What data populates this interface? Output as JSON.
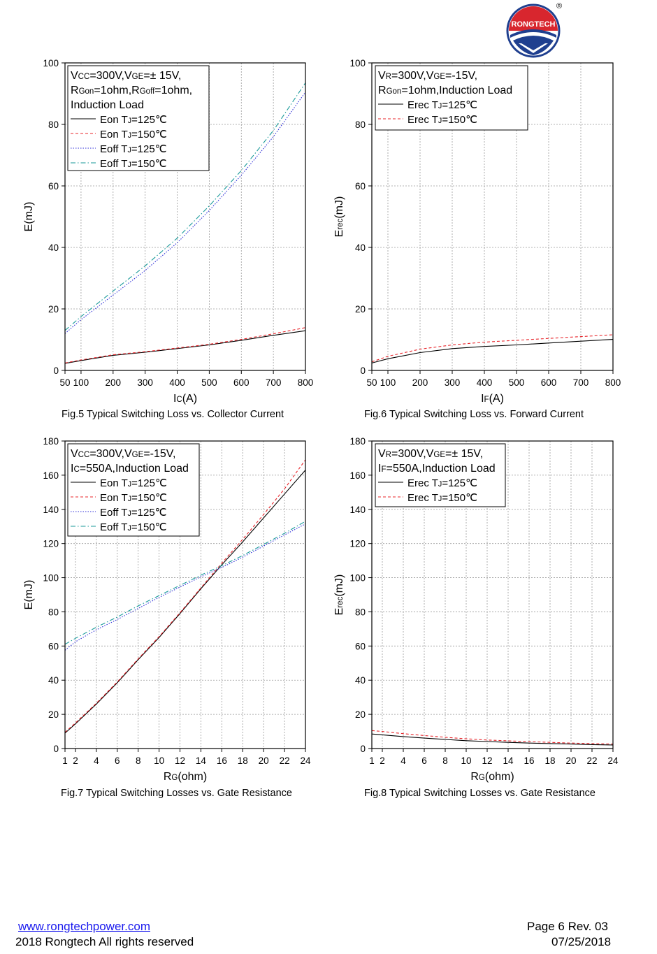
{
  "brand": {
    "logo_text": "RONGTECH",
    "registered": "®",
    "colors": {
      "red": "#d8262e",
      "blue": "#1f3f8f"
    }
  },
  "footer": {
    "website": "www.rongtechpower.com",
    "copyright": "2018 Rongtech All rights reserved",
    "page": "Page 6  Rev. 03",
    "date": "07/25/2018"
  },
  "colors": {
    "s125": "#000000",
    "s150": "#e8242a",
    "soff125": "#3030d8",
    "soff150": "#1a9a9a"
  },
  "chart_data": [
    {
      "id": "fig5",
      "type": "line",
      "caption": "Fig.5 Typical Switching Loss vs. Collector Current",
      "xlabel": [
        "I",
        "C",
        "(A)"
      ],
      "ylabel": [
        "E(mJ)"
      ],
      "xlim": [
        50,
        800
      ],
      "ylim": [
        0,
        100
      ],
      "xticks": [
        50,
        100,
        200,
        300,
        400,
        500,
        600,
        700,
        800
      ],
      "yticks": [
        0,
        20,
        40,
        60,
        80,
        100
      ],
      "grid": true,
      "legend_position": "top-left",
      "legend_conditions": [
        [
          [
            "V",
            false
          ],
          [
            "CC",
            true
          ],
          [
            "=300V,V",
            false
          ],
          [
            "GE",
            true
          ],
          [
            "=± 15V,",
            false
          ]
        ],
        [
          [
            "R",
            false
          ],
          [
            "Gon",
            true
          ],
          [
            "=1ohm,R",
            false
          ],
          [
            "Goff",
            true
          ],
          [
            "=1ohm,",
            false
          ]
        ],
        [
          [
            "Induction Load",
            false
          ]
        ]
      ],
      "series": [
        {
          "name": "Eon TJ=125℃",
          "label": [
            "Eon T",
            "J",
            "=125℃"
          ],
          "style": "solid",
          "color": "#000000",
          "x": [
            50,
            100,
            200,
            300,
            400,
            500,
            600,
            700,
            800
          ],
          "y": [
            2.3,
            3.2,
            4.9,
            5.9,
            7.1,
            8.3,
            9.8,
            11.4,
            12.9
          ]
        },
        {
          "name": "Eon TJ=150℃",
          "label": [
            "Eon T",
            "J",
            "=150℃"
          ],
          "style": "dash",
          "color": "#e8242a",
          "x": [
            50,
            100,
            200,
            300,
            400,
            500,
            600,
            700,
            800
          ],
          "y": [
            2.4,
            3.4,
            5.1,
            6.1,
            7.3,
            8.5,
            10.1,
            11.9,
            13.9
          ]
        },
        {
          "name": "Eoff TJ=125℃",
          "label": [
            "Eoff T",
            "J",
            "=125℃"
          ],
          "style": "dot",
          "color": "#3030d8",
          "x": [
            50,
            100,
            200,
            300,
            400,
            500,
            600,
            700,
            800
          ],
          "y": [
            12,
            16.5,
            24.5,
            32.5,
            41.5,
            52,
            63.5,
            76,
            90.5
          ]
        },
        {
          "name": "Eoff TJ=150℃",
          "label": [
            "Eoff T",
            "J",
            "=150℃"
          ],
          "style": "dashdot",
          "color": "#1a9a9a",
          "x": [
            50,
            100,
            200,
            300,
            400,
            500,
            600,
            700,
            800
          ],
          "y": [
            13,
            17.5,
            25.8,
            34,
            43,
            53.5,
            65,
            78,
            93.5
          ]
        }
      ]
    },
    {
      "id": "fig6",
      "type": "line",
      "caption": "Fig.6 Typical Switching Loss vs. Forward Current",
      "xlabel": [
        "I",
        "F",
        "(A)"
      ],
      "ylabel": [
        "E",
        "rec",
        "(mJ)"
      ],
      "xlim": [
        50,
        800
      ],
      "ylim": [
        0,
        100
      ],
      "xticks": [
        50,
        100,
        200,
        300,
        400,
        500,
        600,
        700,
        800
      ],
      "yticks": [
        0,
        20,
        40,
        60,
        80,
        100
      ],
      "grid": true,
      "legend_position": "top-left",
      "legend_conditions": [
        [
          [
            "V",
            false
          ],
          [
            "R",
            true
          ],
          [
            "=300V,V",
            false
          ],
          [
            "GE",
            true
          ],
          [
            "=-15V,",
            false
          ]
        ],
        [
          [
            "R",
            false
          ],
          [
            "Gon",
            true
          ],
          [
            "=1ohm,Induction Load",
            false
          ]
        ]
      ],
      "series": [
        {
          "name": "Erec TJ=125℃",
          "label": [
            "Erec T",
            "J",
            "=125℃"
          ],
          "style": "solid",
          "color": "#000000",
          "x": [
            50,
            100,
            200,
            300,
            400,
            500,
            600,
            700,
            800
          ],
          "y": [
            2.4,
            3.8,
            5.8,
            7.1,
            7.8,
            8.3,
            8.9,
            9.5,
            10.1
          ]
        },
        {
          "name": "Erec TJ=150℃",
          "label": [
            "Erec T",
            "J",
            "=150℃"
          ],
          "style": "dash",
          "color": "#e8242a",
          "x": [
            50,
            100,
            200,
            300,
            400,
            500,
            600,
            700,
            800
          ],
          "y": [
            2.8,
            4.6,
            6.9,
            8.3,
            9.2,
            9.8,
            10.4,
            11,
            11.6
          ]
        }
      ]
    },
    {
      "id": "fig7",
      "type": "line",
      "caption": "Fig.7 Typical Switching Losses vs. Gate Resistance",
      "xlabel": [
        "R",
        "G",
        "(ohm)"
      ],
      "ylabel": [
        "E(mJ)"
      ],
      "xlim": [
        1,
        24
      ],
      "ylim": [
        0,
        180
      ],
      "xticks": [
        1,
        2,
        4,
        6,
        8,
        10,
        12,
        14,
        16,
        18,
        20,
        22,
        24
      ],
      "yticks": [
        0,
        20,
        40,
        60,
        80,
        100,
        120,
        140,
        160,
        180
      ],
      "grid": true,
      "legend_position": "top-left",
      "legend_conditions": [
        [
          [
            "V",
            false
          ],
          [
            "CC",
            true
          ],
          [
            "=300V,V",
            false
          ],
          [
            "GE",
            true
          ],
          [
            "=-15V,",
            false
          ]
        ],
        [
          [
            "I",
            false
          ],
          [
            "C",
            true
          ],
          [
            "=550A,Induction Load",
            false
          ]
        ]
      ],
      "series": [
        {
          "name": "Eon TJ=125℃",
          "label": [
            "Eon T",
            "J",
            "=125℃"
          ],
          "style": "solid",
          "color": "#000000",
          "x": [
            1,
            2,
            4,
            6,
            8,
            10,
            12,
            14,
            16,
            18,
            20,
            22,
            24
          ],
          "y": [
            9,
            14.5,
            26,
            38.5,
            52,
            65,
            79,
            93.5,
            107.5,
            121,
            135,
            149,
            163
          ]
        },
        {
          "name": "Eon TJ=150℃",
          "label": [
            "Eon T",
            "J",
            "=150℃"
          ],
          "style": "dash",
          "color": "#e8242a",
          "x": [
            1,
            2,
            4,
            6,
            8,
            10,
            12,
            14,
            16,
            18,
            20,
            22,
            24
          ],
          "y": [
            9.5,
            15,
            26.5,
            39,
            52.5,
            65.5,
            79.5,
            94,
            108.5,
            122.5,
            137,
            152,
            169
          ]
        },
        {
          "name": "Eoff TJ=125℃",
          "label": [
            "Eoff T",
            "J",
            "=125℃"
          ],
          "style": "dot",
          "color": "#3030d8",
          "x": [
            1,
            2,
            4,
            6,
            8,
            10,
            12,
            14,
            16,
            18,
            20,
            22,
            24
          ],
          "y": [
            57.5,
            62.5,
            69.5,
            75.5,
            82,
            88.5,
            94.5,
            100.5,
            106,
            112,
            118.5,
            125,
            131.5
          ]
        },
        {
          "name": "Eoff TJ=150℃",
          "label": [
            "Eoff T",
            "J",
            "=150℃"
          ],
          "style": "dashdot",
          "color": "#1a9a9a",
          "x": [
            1,
            2,
            4,
            6,
            8,
            10,
            12,
            14,
            16,
            18,
            20,
            22,
            24
          ],
          "y": [
            61,
            64.5,
            71,
            77,
            83.5,
            89.5,
            95.5,
            101.5,
            107,
            113,
            119.5,
            126,
            133
          ]
        }
      ]
    },
    {
      "id": "fig8",
      "type": "line",
      "caption": "Fig.8 Typical Switching Losses vs. Gate Resistance",
      "xlabel": [
        "R",
        "G",
        "(ohm)"
      ],
      "ylabel": [
        "E",
        "rec",
        "(mJ)"
      ],
      "xlim": [
        1,
        24
      ],
      "ylim": [
        0,
        180
      ],
      "xticks": [
        1,
        2,
        4,
        6,
        8,
        10,
        12,
        14,
        16,
        18,
        20,
        22,
        24
      ],
      "yticks": [
        0,
        20,
        40,
        60,
        80,
        100,
        120,
        140,
        160,
        180
      ],
      "grid": true,
      "legend_position": "top-left",
      "legend_conditions": [
        [
          [
            "V",
            false
          ],
          [
            "R",
            true
          ],
          [
            "=300V,V",
            false
          ],
          [
            "GE",
            true
          ],
          [
            "=± 15V,",
            false
          ]
        ],
        [
          [
            "I",
            false
          ],
          [
            "F",
            true
          ],
          [
            "=550A,Induction Load",
            false
          ]
        ]
      ],
      "series": [
        {
          "name": "Erec TJ=125℃",
          "label": [
            "Erec T",
            "J",
            "=125℃"
          ],
          "style": "solid",
          "color": "#000000",
          "x": [
            1,
            2,
            4,
            6,
            8,
            10,
            12,
            14,
            16,
            18,
            20,
            22,
            24
          ],
          "y": [
            8.5,
            8,
            7,
            6.1,
            5.3,
            4.6,
            4.1,
            3.6,
            3.2,
            2.9,
            2.6,
            2.3,
            2.1
          ]
        },
        {
          "name": "Erec TJ=150℃",
          "label": [
            "Erec T",
            "J",
            "=150℃"
          ],
          "style": "dash",
          "color": "#e8242a",
          "x": [
            1,
            2,
            4,
            6,
            8,
            10,
            12,
            14,
            16,
            18,
            20,
            22,
            24
          ],
          "y": [
            10.5,
            10,
            8.7,
            7.6,
            6.6,
            5.7,
            5,
            4.5,
            4,
            3.6,
            3.2,
            2.9,
            2.6
          ]
        }
      ]
    }
  ]
}
